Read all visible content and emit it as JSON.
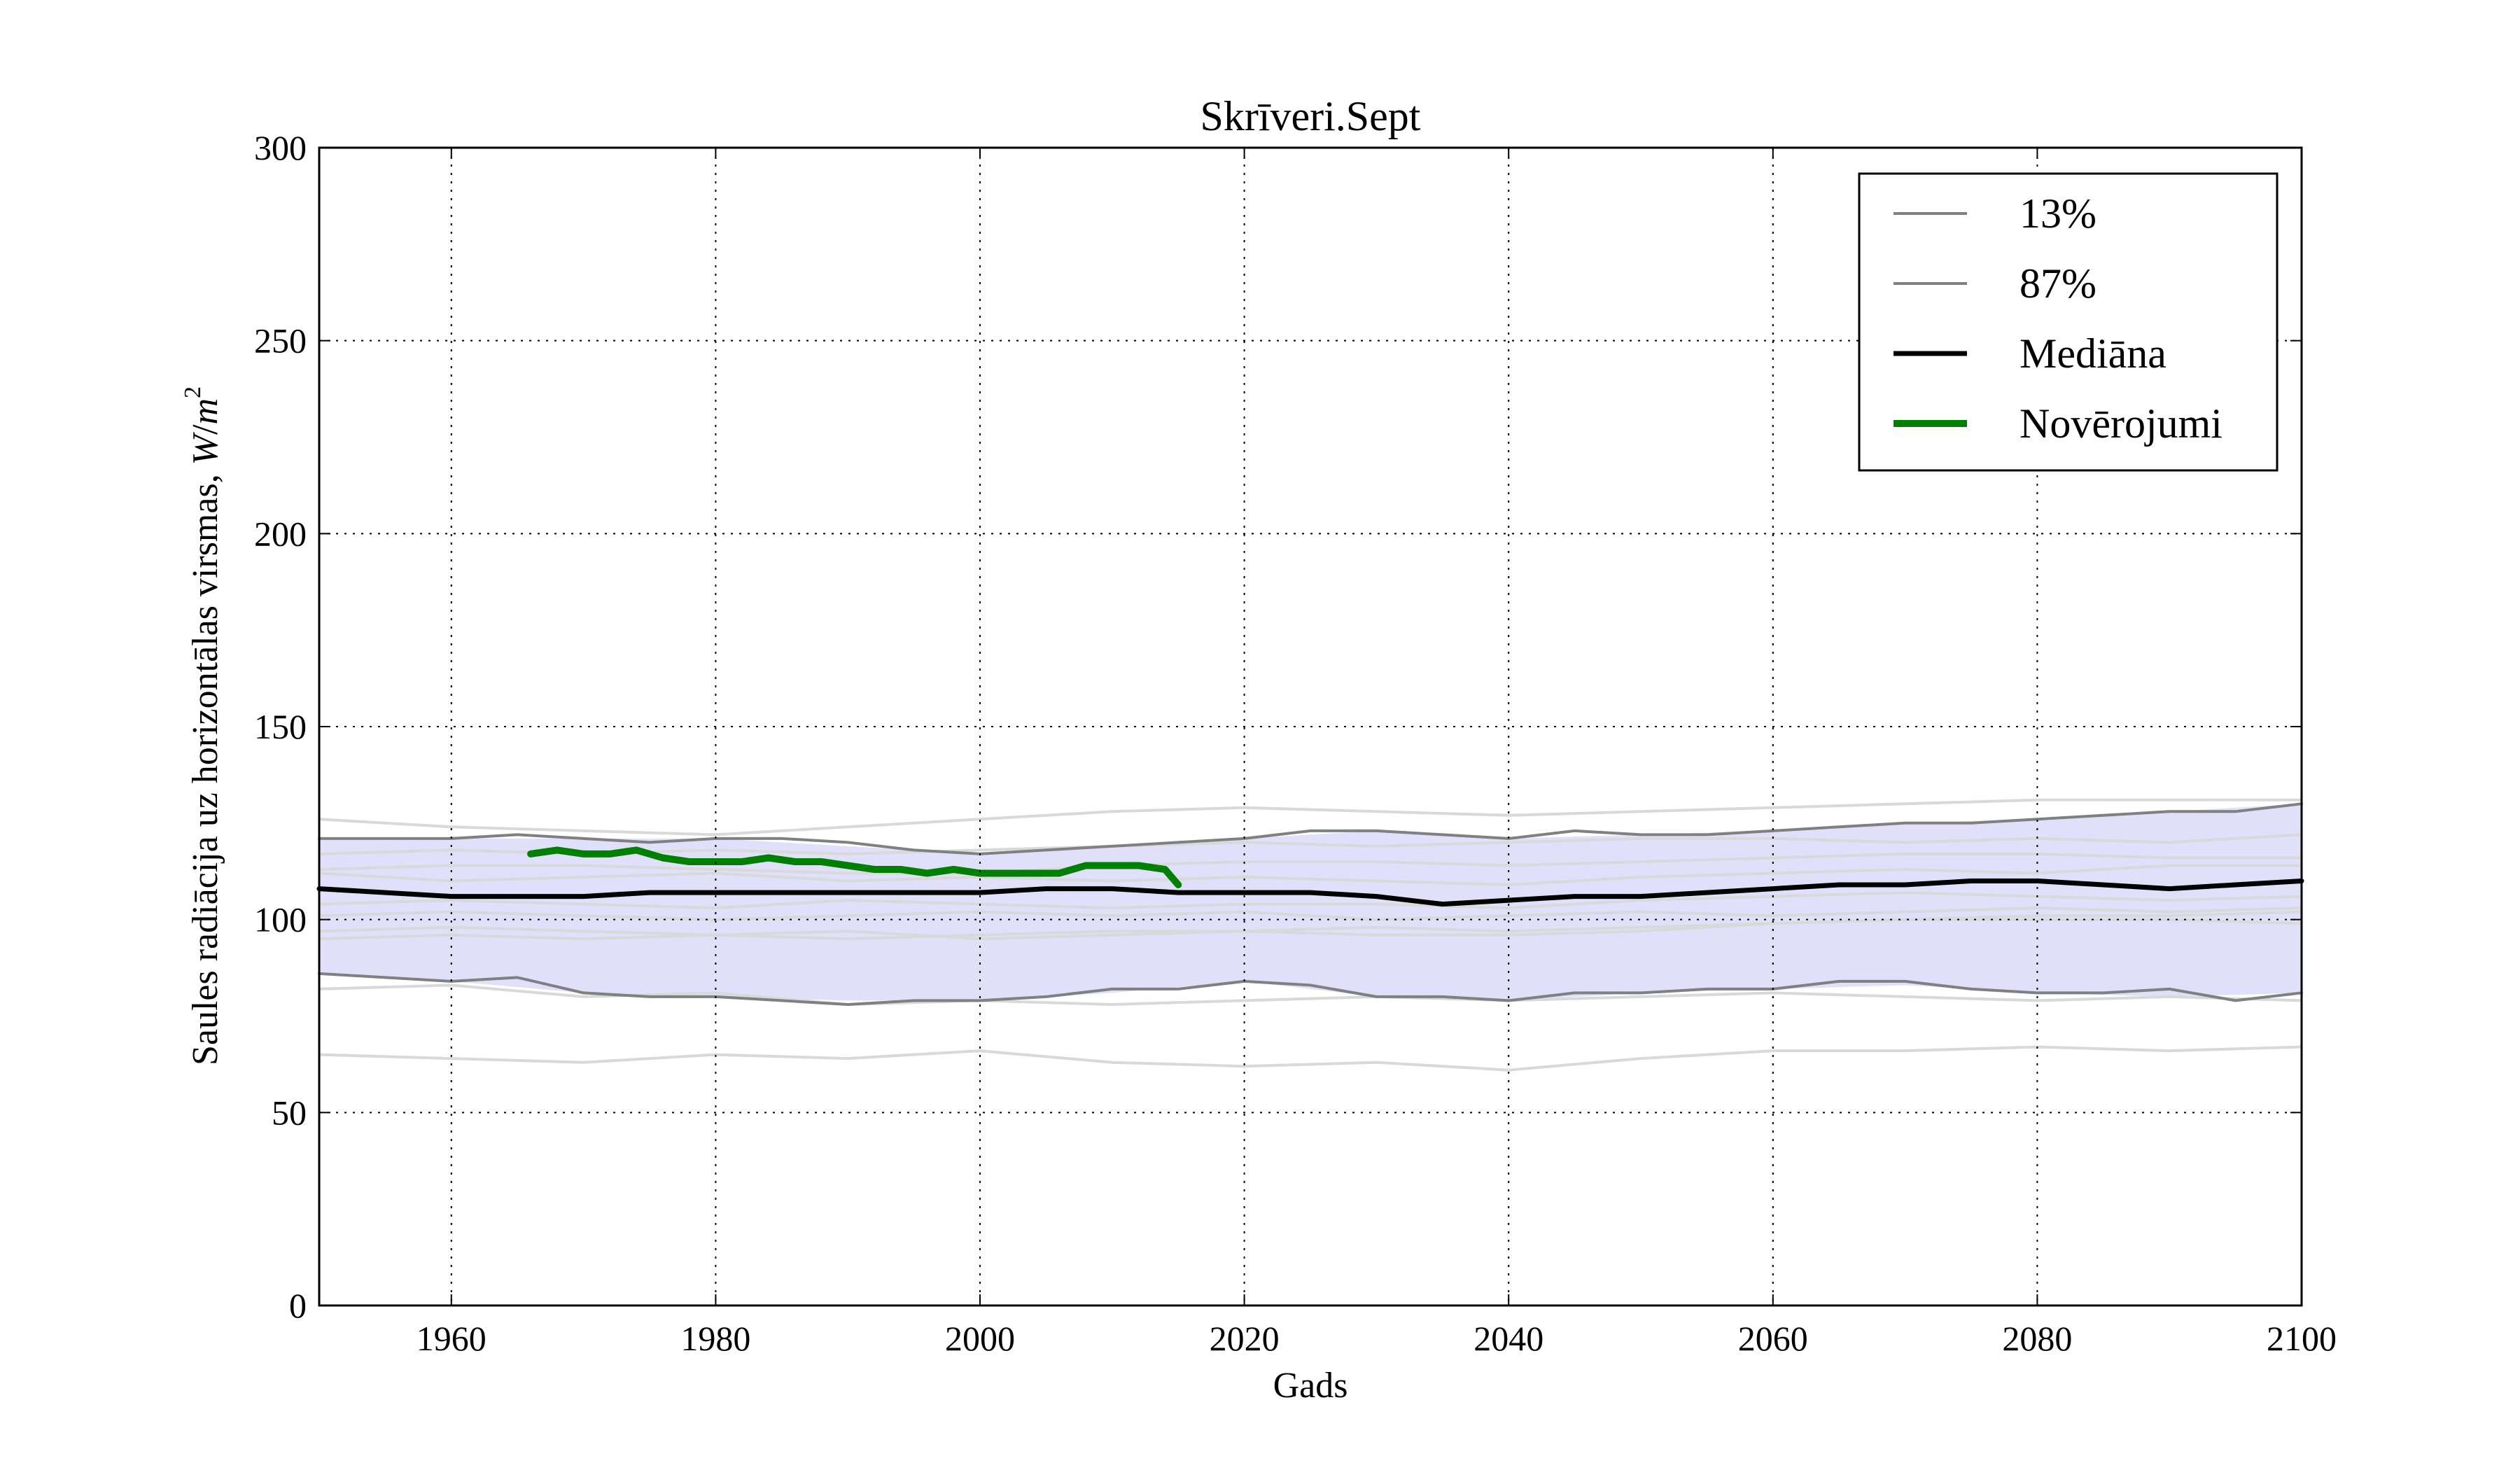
{
  "chart_data": {
    "type": "line",
    "title": "Skrīveri.Sept",
    "xlabel": "Gads",
    "ylabel": "Saules radiācija uz horizontālas virsmas, W/m²",
    "xlim": [
      1950,
      2100
    ],
    "ylim": [
      0,
      300
    ],
    "xticks": [
      1960,
      1980,
      2000,
      2020,
      2040,
      2060,
      2080,
      2100
    ],
    "yticks": [
      0,
      50,
      100,
      150,
      200,
      250,
      300
    ],
    "grid": true,
    "legend_position": "top-right",
    "band": {
      "name": "13% – 87%",
      "color": "#e0e0fb",
      "x": [
        1950,
        1960,
        1970,
        1980,
        1990,
        2000,
        2010,
        2020,
        2030,
        2040,
        2050,
        2060,
        2070,
        2080,
        2090,
        2100
      ],
      "lower": [
        86,
        84,
        81,
        80,
        79,
        79,
        81,
        84,
        80,
        79,
        81,
        82,
        83,
        81,
        80,
        81
      ],
      "upper": [
        121,
        121,
        121,
        121,
        119,
        117,
        119,
        121,
        123,
        121,
        122,
        123,
        125,
        126,
        128,
        130
      ]
    },
    "series": [
      {
        "name": "13%",
        "color": "#808080",
        "width": 4,
        "x": [
          1950,
          1960,
          1965,
          1970,
          1975,
          1980,
          1985,
          1990,
          1995,
          2000,
          2005,
          2010,
          2015,
          2020,
          2025,
          2030,
          2035,
          2040,
          2045,
          2050,
          2055,
          2060,
          2065,
          2070,
          2075,
          2080,
          2085,
          2090,
          2095,
          2100
        ],
        "values": [
          86,
          84,
          85,
          81,
          80,
          80,
          79,
          78,
          79,
          79,
          80,
          82,
          82,
          84,
          83,
          80,
          80,
          79,
          81,
          81,
          82,
          82,
          84,
          84,
          82,
          81,
          81,
          82,
          79,
          81
        ]
      },
      {
        "name": "87%",
        "color": "#808080",
        "width": 4,
        "x": [
          1950,
          1960,
          1965,
          1970,
          1975,
          1980,
          1985,
          1990,
          1995,
          2000,
          2005,
          2010,
          2015,
          2020,
          2025,
          2030,
          2035,
          2040,
          2045,
          2050,
          2055,
          2060,
          2065,
          2070,
          2075,
          2080,
          2085,
          2090,
          2095,
          2100
        ],
        "values": [
          121,
          121,
          122,
          121,
          120,
          121,
          121,
          120,
          118,
          117,
          118,
          119,
          120,
          121,
          123,
          123,
          122,
          121,
          123,
          122,
          122,
          123,
          124,
          125,
          125,
          126,
          127,
          128,
          128,
          130
        ]
      },
      {
        "name": "Mediāna",
        "color": "#000000",
        "width": 7,
        "x": [
          1950,
          1955,
          1960,
          1965,
          1970,
          1975,
          1980,
          1985,
          1990,
          1995,
          2000,
          2005,
          2010,
          2015,
          2020,
          2025,
          2030,
          2035,
          2040,
          2045,
          2050,
          2055,
          2060,
          2065,
          2070,
          2075,
          2080,
          2085,
          2090,
          2095,
          2100
        ],
        "values": [
          108,
          107,
          106,
          106,
          106,
          107,
          107,
          107,
          107,
          107,
          107,
          108,
          108,
          107,
          107,
          107,
          106,
          104,
          105,
          106,
          106,
          107,
          108,
          109,
          109,
          110,
          110,
          109,
          108,
          109,
          110
        ]
      },
      {
        "name": "Novērojumi",
        "color": "#008000",
        "width": 10,
        "x": [
          1966,
          1968,
          1970,
          1972,
          1974,
          1976,
          1978,
          1980,
          1982,
          1984,
          1986,
          1988,
          1990,
          1992,
          1994,
          1996,
          1998,
          2000,
          2002,
          2004,
          2006,
          2008,
          2010,
          2012,
          2014,
          2015
        ],
        "values": [
          117,
          118,
          117,
          117,
          118,
          116,
          115,
          115,
          115,
          116,
          115,
          115,
          114,
          113,
          113,
          112,
          113,
          112,
          112,
          112,
          112,
          114,
          114,
          114,
          113,
          109
        ]
      }
    ],
    "ensemble_lines": {
      "color": "#d9d9d9",
      "x": [
        1950,
        1960,
        1970,
        1980,
        1990,
        2000,
        2010,
        2020,
        2030,
        2040,
        2050,
        2060,
        2070,
        2080,
        2090,
        2100
      ],
      "lines": [
        [
          126,
          124,
          123,
          122,
          124,
          126,
          128,
          129,
          128,
          127,
          128,
          129,
          130,
          131,
          131,
          131
        ],
        [
          117,
          118,
          117,
          118,
          117,
          118,
          119,
          120,
          119,
          120,
          121,
          121,
          120,
          121,
          120,
          122
        ],
        [
          113,
          114,
          114,
          113,
          112,
          112,
          114,
          115,
          115,
          114,
          115,
          116,
          117,
          117,
          116,
          116
        ],
        [
          112,
          110,
          111,
          112,
          110,
          111,
          110,
          111,
          110,
          109,
          111,
          112,
          113,
          112,
          114,
          114
        ],
        [
          104,
          105,
          104,
          103,
          105,
          104,
          103,
          104,
          104,
          103,
          105,
          106,
          107,
          106,
          105,
          106
        ],
        [
          101,
          102,
          101,
          100,
          101,
          102,
          101,
          102,
          100,
          101,
          102,
          101,
          102,
          103,
          102,
          103
        ],
        [
          97,
          98,
          97,
          96,
          97,
          95,
          96,
          97,
          96,
          96,
          97,
          99,
          100,
          100,
          100,
          99
        ],
        [
          95,
          96,
          95,
          96,
          95,
          96,
          97,
          97,
          98,
          97,
          98,
          99,
          100,
          101,
          101,
          102
        ],
        [
          82,
          83,
          80,
          81,
          78,
          79,
          78,
          79,
          80,
          79,
          80,
          81,
          80,
          79,
          80,
          79
        ],
        [
          65,
          64,
          63,
          65,
          64,
          66,
          63,
          62,
          63,
          61,
          64,
          66,
          66,
          67,
          66,
          67
        ]
      ]
    }
  }
}
